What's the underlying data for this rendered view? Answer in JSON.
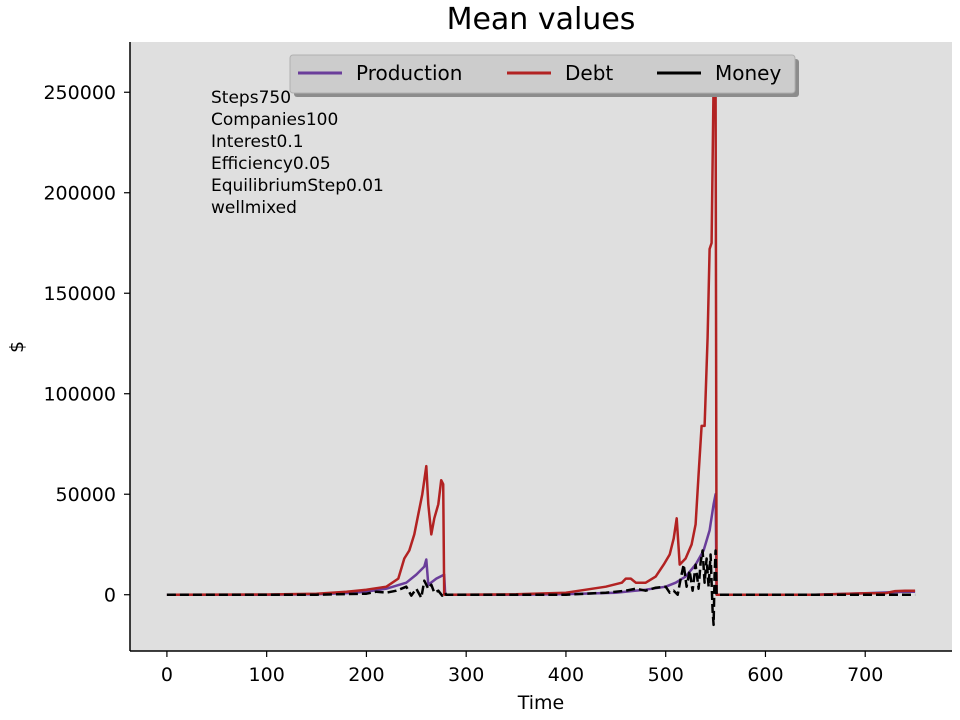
{
  "chart_data": {
    "type": "line",
    "title": "Mean values",
    "xlabel": "Time",
    "ylabel": "$",
    "xlim": [
      -37,
      787
    ],
    "ylim": [
      -28000,
      275000
    ],
    "xticks": [
      0,
      100,
      200,
      300,
      400,
      500,
      600,
      700
    ],
    "yticks": [
      0,
      50000,
      100000,
      150000,
      200000,
      250000
    ],
    "grid": false,
    "legend_placement": "top-center",
    "background": "#dfdfdf",
    "annotations": [
      "Steps750",
      "Companies100",
      "Interest0.1",
      "Efficiency0.05",
      "EquilibriumStep0.01",
      "wellmixed"
    ],
    "series": [
      {
        "name": "Production",
        "color": "#6a3d9a",
        "style": "solid",
        "points": [
          [
            0,
            0
          ],
          [
            100,
            0
          ],
          [
            150,
            200
          ],
          [
            180,
            800
          ],
          [
            200,
            1500
          ],
          [
            220,
            3000
          ],
          [
            240,
            6000
          ],
          [
            250,
            10000
          ],
          [
            258,
            14000
          ],
          [
            260,
            17500
          ],
          [
            262,
            5000
          ],
          [
            270,
            8000
          ],
          [
            278,
            10000
          ],
          [
            279,
            0
          ],
          [
            350,
            0
          ],
          [
            400,
            300
          ],
          [
            450,
            1000
          ],
          [
            480,
            2500
          ],
          [
            500,
            4000
          ],
          [
            510,
            6000
          ],
          [
            520,
            9000
          ],
          [
            530,
            15000
          ],
          [
            538,
            22000
          ],
          [
            544,
            32000
          ],
          [
            548,
            45000
          ],
          [
            550,
            50000
          ],
          [
            551,
            0
          ],
          [
            650,
            0
          ],
          [
            700,
            700
          ],
          [
            740,
            1500
          ],
          [
            750,
            1500
          ]
        ]
      },
      {
        "name": "Debt",
        "color": "#b22222",
        "style": "solid",
        "points": [
          [
            0,
            0
          ],
          [
            100,
            100
          ],
          [
            150,
            500
          ],
          [
            180,
            1500
          ],
          [
            200,
            2500
          ],
          [
            220,
            4000
          ],
          [
            232,
            8000
          ],
          [
            238,
            18000
          ],
          [
            243,
            22000
          ],
          [
            248,
            30000
          ],
          [
            252,
            40000
          ],
          [
            256,
            50000
          ],
          [
            258,
            57000
          ],
          [
            260,
            64000
          ],
          [
            262,
            45000
          ],
          [
            265,
            30000
          ],
          [
            268,
            38000
          ],
          [
            272,
            45000
          ],
          [
            275,
            57000
          ],
          [
            277,
            55000
          ],
          [
            278,
            0
          ],
          [
            280,
            0
          ],
          [
            350,
            200
          ],
          [
            400,
            1000
          ],
          [
            420,
            2500
          ],
          [
            440,
            4000
          ],
          [
            456,
            6000
          ],
          [
            460,
            8000
          ],
          [
            465,
            8000
          ],
          [
            470,
            6000
          ],
          [
            480,
            6000
          ],
          [
            490,
            9000
          ],
          [
            498,
            15000
          ],
          [
            504,
            20000
          ],
          [
            508,
            28000
          ],
          [
            511,
            38000
          ],
          [
            514,
            15000
          ],
          [
            520,
            18000
          ],
          [
            526,
            25000
          ],
          [
            530,
            35000
          ],
          [
            533,
            60000
          ],
          [
            536,
            84000
          ],
          [
            539,
            84000
          ],
          [
            542,
            128000
          ],
          [
            544,
            172000
          ],
          [
            546,
            175000
          ],
          [
            548,
            255000
          ],
          [
            550,
            250000
          ],
          [
            551,
            0
          ],
          [
            650,
            0
          ],
          [
            700,
            700
          ],
          [
            720,
            700
          ],
          [
            730,
            1800
          ],
          [
            740,
            2000
          ],
          [
            750,
            2000
          ]
        ]
      },
      {
        "name": "Money",
        "color": "#000000",
        "style": "dashed",
        "points": [
          [
            0,
            0
          ],
          [
            100,
            0
          ],
          [
            150,
            0
          ],
          [
            180,
            300
          ],
          [
            200,
            500
          ],
          [
            210,
            1500
          ],
          [
            220,
            1000
          ],
          [
            230,
            2000
          ],
          [
            240,
            4000
          ],
          [
            245,
            -500
          ],
          [
            250,
            3000
          ],
          [
            255,
            -1500
          ],
          [
            258,
            7000
          ],
          [
            262,
            3000
          ],
          [
            265,
            5000
          ],
          [
            268,
            1000
          ],
          [
            272,
            2000
          ],
          [
            276,
            -500
          ],
          [
            279,
            1000
          ],
          [
            280,
            0
          ],
          [
            350,
            0
          ],
          [
            400,
            0
          ],
          [
            440,
            1000
          ],
          [
            460,
            2000
          ],
          [
            470,
            3000
          ],
          [
            480,
            2000
          ],
          [
            490,
            3500
          ],
          [
            500,
            4000
          ],
          [
            504,
            1000
          ],
          [
            508,
            2000
          ],
          [
            512,
            0
          ],
          [
            515,
            8000
          ],
          [
            518,
            15000
          ],
          [
            521,
            4000
          ],
          [
            524,
            12000
          ],
          [
            527,
            2000
          ],
          [
            530,
            15000
          ],
          [
            533,
            3000
          ],
          [
            535,
            16000
          ],
          [
            537,
            22000
          ],
          [
            539,
            6000
          ],
          [
            541,
            18000
          ],
          [
            543,
            4000
          ],
          [
            545,
            20000
          ],
          [
            547,
            -8000
          ],
          [
            548,
            -15000
          ],
          [
            549,
            10000
          ],
          [
            550,
            22000
          ],
          [
            551,
            0
          ],
          [
            650,
            0
          ],
          [
            700,
            0
          ],
          [
            740,
            0
          ],
          [
            750,
            0
          ]
        ]
      }
    ]
  }
}
